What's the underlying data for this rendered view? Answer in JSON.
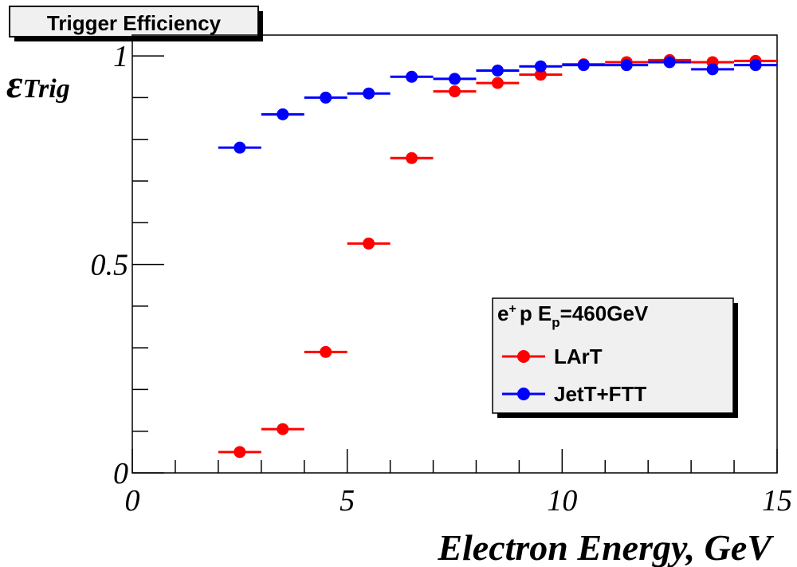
{
  "chart_data": {
    "type": "scatter",
    "title": "Trigger Efficiency",
    "xlabel": "Electron Energy, GeV",
    "ylabel": "ε_Trig",
    "ylabel_main": "ε",
    "ylabel_sub": "Trig",
    "xlim": [
      0,
      15
    ],
    "ylim": [
      0,
      1.05
    ],
    "x_ticks": [
      {
        "value": 0,
        "label": "0"
      },
      {
        "value": 5,
        "label": "5"
      },
      {
        "value": 10,
        "label": "10"
      },
      {
        "value": 15,
        "label": "15"
      }
    ],
    "y_ticks": [
      {
        "value": 0,
        "label": "0"
      },
      {
        "value": 0.5,
        "label": "0.5"
      },
      {
        "value": 1,
        "label": "1"
      }
    ],
    "grid": false,
    "legend": {
      "placement": "lower-right",
      "header_main": "e",
      "header_sup": "+",
      "header_mid": "p E",
      "header_sub": "p",
      "header_tail": "=460GeV"
    },
    "series": [
      {
        "name": "LArT",
        "color": "#ff0000",
        "points": [
          {
            "x_lo": 2,
            "x_hi": 3,
            "y": 0.05
          },
          {
            "x_lo": 3,
            "x_hi": 4,
            "y": 0.105
          },
          {
            "x_lo": 4,
            "x_hi": 5,
            "y": 0.29
          },
          {
            "x_lo": 5,
            "x_hi": 6,
            "y": 0.55
          },
          {
            "x_lo": 6,
            "x_hi": 7,
            "y": 0.755
          },
          {
            "x_lo": 7,
            "x_hi": 8,
            "y": 0.915
          },
          {
            "x_lo": 8,
            "x_hi": 9,
            "y": 0.935
          },
          {
            "x_lo": 9,
            "x_hi": 10,
            "y": 0.955
          },
          {
            "x_lo": 10,
            "x_hi": 11,
            "y": 0.98
          },
          {
            "x_lo": 11,
            "x_hi": 12,
            "y": 0.985
          },
          {
            "x_lo": 12,
            "x_hi": 13,
            "y": 0.99
          },
          {
            "x_lo": 13,
            "x_hi": 14,
            "y": 0.985
          },
          {
            "x_lo": 14,
            "x_hi": 15,
            "y": 0.988
          }
        ]
      },
      {
        "name": "JetT+FTT",
        "color": "#0000ff",
        "points": [
          {
            "x_lo": 2,
            "x_hi": 3,
            "y": 0.78
          },
          {
            "x_lo": 3,
            "x_hi": 4,
            "y": 0.86
          },
          {
            "x_lo": 4,
            "x_hi": 5,
            "y": 0.9
          },
          {
            "x_lo": 5,
            "x_hi": 6,
            "y": 0.91
          },
          {
            "x_lo": 6,
            "x_hi": 7,
            "y": 0.95
          },
          {
            "x_lo": 7,
            "x_hi": 8,
            "y": 0.945
          },
          {
            "x_lo": 8,
            "x_hi": 9,
            "y": 0.965
          },
          {
            "x_lo": 9,
            "x_hi": 10,
            "y": 0.975
          },
          {
            "x_lo": 10,
            "x_hi": 11,
            "y": 0.978
          },
          {
            "x_lo": 11,
            "x_hi": 12,
            "y": 0.978
          },
          {
            "x_lo": 12,
            "x_hi": 13,
            "y": 0.985
          },
          {
            "x_lo": 13,
            "x_hi": 14,
            "y": 0.968
          },
          {
            "x_lo": 14,
            "x_hi": 15,
            "y": 0.978
          }
        ]
      }
    ]
  }
}
